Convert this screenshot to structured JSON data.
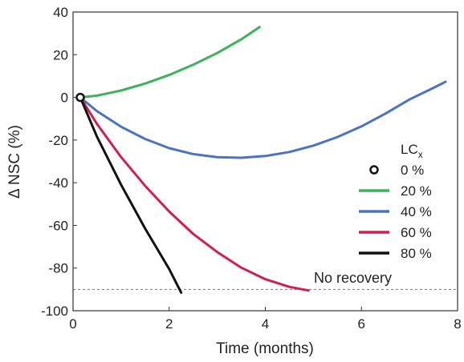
{
  "chart_data": {
    "type": "line",
    "title": "",
    "xlabel": "Time (months)",
    "ylabel": "Δ NSC (%)",
    "xlim": [
      0,
      8
    ],
    "ylim": [
      -100,
      40
    ],
    "xticks": [
      0,
      2,
      4,
      6,
      8
    ],
    "yticks": [
      40,
      20,
      0,
      -20,
      -40,
      -60,
      -80,
      -100
    ],
    "grid": false,
    "legend": {
      "title": "LC",
      "title_subscript": "x",
      "placement": "right",
      "entries": [
        "0 %",
        "20 %",
        "40 %",
        "60 %",
        "80 %"
      ]
    },
    "series": [
      {
        "name": "0 %",
        "marker": "circle",
        "color": "#111111",
        "x": [
          0.15
        ],
        "y": [
          0
        ]
      },
      {
        "name": "20 %",
        "color": "#3cb35a",
        "x": [
          0.15,
          0.5,
          1.0,
          1.5,
          2.0,
          2.5,
          3.0,
          3.5,
          3.88
        ],
        "y": [
          0,
          0.8,
          3.2,
          6.5,
          10.5,
          15.3,
          20.8,
          27.2,
          33
        ]
      },
      {
        "name": "40 %",
        "color": "#4a73c4",
        "x": [
          0.15,
          0.5,
          1.0,
          1.5,
          2.0,
          2.5,
          3.0,
          3.5,
          4.0,
          4.5,
          5.0,
          5.5,
          6.0,
          6.5,
          7.0,
          7.5,
          7.75
        ],
        "y": [
          0,
          -6.5,
          -13.8,
          -19.5,
          -23.8,
          -26.6,
          -28.0,
          -28.3,
          -27.5,
          -25.6,
          -22.6,
          -18.6,
          -13.6,
          -7.6,
          -1.0,
          4.5,
          7.3
        ]
      },
      {
        "name": "60 %",
        "color": "#d21f4e",
        "x": [
          0.15,
          0.5,
          1.0,
          1.5,
          2.0,
          2.5,
          3.0,
          3.5,
          4.0,
          4.5,
          4.9
        ],
        "y": [
          0,
          -12.5,
          -28.0,
          -41.5,
          -53.5,
          -64.0,
          -72.5,
          -79.8,
          -85.2,
          -88.8,
          -90.5
        ]
      },
      {
        "name": "80 %",
        "color": "#111111",
        "x": [
          0.15,
          0.5,
          1.0,
          1.5,
          2.0,
          2.25
        ],
        "y": [
          0,
          -18.5,
          -41.0,
          -61.5,
          -80.5,
          -91.5
        ]
      }
    ],
    "reference_line": {
      "y": -90,
      "style": "dashed",
      "label": "No recovery"
    }
  }
}
